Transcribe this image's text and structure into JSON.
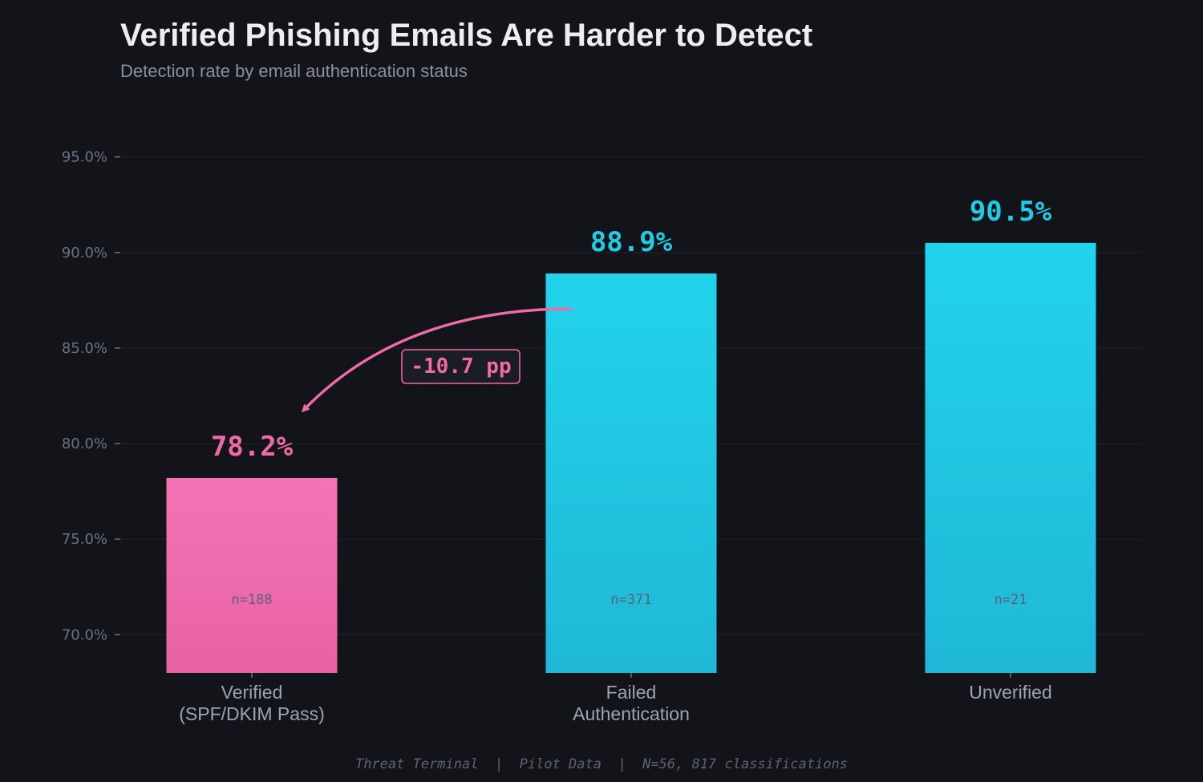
{
  "chart_data": {
    "type": "bar",
    "title": "Verified Phishing Emails Are Harder to Detect",
    "subtitle": "Detection rate by email authentication status",
    "xlabel": "",
    "ylabel": "",
    "categories": [
      "Verified\n(SPF/DKIM Pass)",
      "Failed\nAuthentication",
      "Unverified"
    ],
    "values": [
      78.2,
      88.9,
      90.5
    ],
    "value_labels": [
      "78.2%",
      "88.9%",
      "90.5%"
    ],
    "sample_sizes": [
      "n=188",
      "n=371",
      "n=21"
    ],
    "bar_colors": [
      "#f06aa8",
      "#20cbe6",
      "#20cbe6"
    ],
    "ylim": [
      68,
      97
    ],
    "yticks": [
      70,
      75,
      80,
      85,
      90,
      95
    ],
    "ytick_labels": [
      "70.0%",
      "75.0%",
      "80.0%",
      "85.0%",
      "90.0%",
      "95.0%"
    ],
    "grid": true,
    "annotation": {
      "text": "-10.7 pp",
      "from_category": 1,
      "to_category": 0,
      "color": "#f06aa8"
    }
  },
  "footer": "Threat Terminal  |  Pilot Data  |  N=56, 817 classifications",
  "colors": {
    "background": "#131419",
    "accent_pink": "#f06aa8",
    "accent_cyan": "#20cbe6",
    "grid": "#20222a"
  }
}
